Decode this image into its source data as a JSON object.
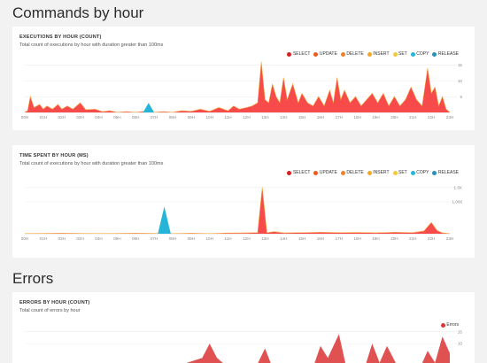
{
  "sections": {
    "commands_title": "Commands by hour",
    "errors_title": "Errors"
  },
  "legend_items": [
    {
      "label": "SELECT",
      "color": "#d81e1e"
    },
    {
      "label": "UPDATE",
      "color": "#ea5a1e"
    },
    {
      "label": "DELETE",
      "color": "#f27f2a"
    },
    {
      "label": "INSERT",
      "color": "#f5a623"
    },
    {
      "label": "SET",
      "color": "#f4c93e"
    },
    {
      "label": "COPY",
      "color": "#26b5d8"
    },
    {
      "label": "RELEASE",
      "color": "#2a8fb9"
    }
  ],
  "x_ticks": [
    "00H",
    "01H",
    "02H",
    "03H",
    "04H",
    "05H",
    "06H",
    "07H",
    "08H",
    "09H",
    "10H",
    "11H",
    "12H",
    "13H",
    "14H",
    "15H",
    "16H",
    "17H",
    "18H",
    "19H",
    "20H",
    "21H",
    "22H",
    "23H"
  ],
  "chart_data": [
    {
      "type": "area",
      "title": "EXECUTIONS BY HOUR (COUNT)",
      "subtitle": "Total count of executions by hour with duration greater than 100ms",
      "y_ticks": [
        "15",
        "10",
        "5",
        "0"
      ],
      "ylim": [
        0,
        16
      ],
      "x_range": [
        0,
        23
      ],
      "colors": {
        "main": "#f74b4b",
        "accent": "#f5a623",
        "copy": "#26b5d8"
      },
      "series": [
        {
          "name": "SELECT",
          "points": [
            [
              0,
              0
            ],
            [
              0.15,
              0.5
            ],
            [
              0.3,
              5
            ],
            [
              0.5,
              1.5
            ],
            [
              0.8,
              2.5
            ],
            [
              1.0,
              1
            ],
            [
              1.2,
              2
            ],
            [
              1.5,
              1
            ],
            [
              1.8,
              2.5
            ],
            [
              2.0,
              1
            ],
            [
              2.3,
              2
            ],
            [
              2.6,
              1
            ],
            [
              3.0,
              3
            ],
            [
              3.3,
              0.8
            ],
            [
              3.8,
              1
            ],
            [
              4.2,
              0.2
            ],
            [
              4.6,
              0.5
            ],
            [
              5.0,
              0
            ],
            [
              5.5,
              0.2
            ],
            [
              6.0,
              0
            ],
            [
              6.5,
              0.3
            ],
            [
              7.0,
              0
            ],
            [
              7.5,
              0.2
            ],
            [
              8.0,
              0
            ],
            [
              8.5,
              0.5
            ],
            [
              9.0,
              0.3
            ],
            [
              9.5,
              1
            ],
            [
              10.0,
              0.3
            ],
            [
              10.5,
              1.5
            ],
            [
              11.0,
              0.5
            ],
            [
              11.3,
              2
            ],
            [
              11.6,
              1
            ],
            [
              12.0,
              1.5
            ],
            [
              12.3,
              2
            ],
            [
              12.6,
              3
            ],
            [
              12.8,
              16
            ],
            [
              13.0,
              4
            ],
            [
              13.2,
              3
            ],
            [
              13.4,
              9
            ],
            [
              13.6,
              5
            ],
            [
              13.8,
              3
            ],
            [
              14.0,
              11
            ],
            [
              14.2,
              4
            ],
            [
              14.5,
              9
            ],
            [
              14.8,
              3
            ],
            [
              15.0,
              6
            ],
            [
              15.3,
              3
            ],
            [
              15.6,
              2
            ],
            [
              15.9,
              5
            ],
            [
              16.2,
              2
            ],
            [
              16.5,
              7
            ],
            [
              16.7,
              3
            ],
            [
              16.9,
              11
            ],
            [
              17.1,
              4
            ],
            [
              17.3,
              7
            ],
            [
              17.6,
              3
            ],
            [
              17.9,
              5
            ],
            [
              18.2,
              2
            ],
            [
              18.5,
              4
            ],
            [
              18.8,
              6
            ],
            [
              19.1,
              3
            ],
            [
              19.4,
              6
            ],
            [
              19.7,
              2
            ],
            [
              20.0,
              5
            ],
            [
              20.3,
              2
            ],
            [
              20.6,
              4
            ],
            [
              20.9,
              8
            ],
            [
              21.2,
              4
            ],
            [
              21.5,
              2
            ],
            [
              21.8,
              14
            ],
            [
              22.0,
              6
            ],
            [
              22.2,
              8
            ],
            [
              22.4,
              2
            ],
            [
              22.6,
              5
            ],
            [
              22.8,
              1
            ],
            [
              23,
              0
            ]
          ]
        },
        {
          "name": "COPY",
          "points": [
            [
              6.4,
              0
            ],
            [
              6.7,
              3
            ],
            [
              7.0,
              0
            ]
          ]
        }
      ]
    },
    {
      "type": "area",
      "title": "TIME SPENT BY HOUR (MS)",
      "subtitle": "Total count of executions by hour with duration greater than 100ms",
      "y_ticks": [
        "1.5K",
        "1,000",
        "500",
        "0"
      ],
      "ylim": [
        0,
        1500
      ],
      "x_range": [
        0,
        23
      ],
      "colors": {
        "main": "#f74b4b",
        "accent": "#f5a623",
        "copy": "#26b5d8"
      },
      "series": [
        {
          "name": "SELECT",
          "points": [
            [
              0,
              0
            ],
            [
              2,
              10
            ],
            [
              4,
              0
            ],
            [
              6,
              10
            ],
            [
              8,
              0
            ],
            [
              9,
              10
            ],
            [
              10,
              0
            ],
            [
              11,
              15
            ],
            [
              12,
              20
            ],
            [
              12.6,
              30
            ],
            [
              12.85,
              1450
            ],
            [
              13.1,
              30
            ],
            [
              13.5,
              60
            ],
            [
              14,
              20
            ],
            [
              15,
              30
            ],
            [
              16,
              40
            ],
            [
              17,
              30
            ],
            [
              18,
              35
            ],
            [
              19,
              25
            ],
            [
              20,
              40
            ],
            [
              21,
              30
            ],
            [
              21.6,
              80
            ],
            [
              22.0,
              350
            ],
            [
              22.3,
              100
            ],
            [
              22.6,
              20
            ],
            [
              23,
              0
            ]
          ]
        },
        {
          "name": "COPY",
          "points": [
            [
              7.2,
              0
            ],
            [
              7.55,
              850
            ],
            [
              7.9,
              0
            ]
          ]
        }
      ]
    },
    {
      "type": "area",
      "title": "ERRORS BY HOUR (COUNT)",
      "subtitle": "Total count of errors by hour",
      "legend": [
        {
          "label": "Errors",
          "color": "#d43b3b"
        }
      ],
      "y_ticks": [
        "15",
        "10"
      ],
      "ylim": [
        0,
        16
      ],
      "x_range": [
        0,
        23
      ],
      "colors": {
        "main": "#e05252"
      },
      "series": [
        {
          "name": "Errors",
          "points": [
            [
              0,
              0
            ],
            [
              4,
              0
            ],
            [
              8,
              0
            ],
            [
              9.6,
              4
            ],
            [
              10.0,
              10
            ],
            [
              10.4,
              4
            ],
            [
              11,
              0
            ],
            [
              12.5,
              0
            ],
            [
              13.0,
              8
            ],
            [
              13.4,
              0
            ],
            [
              15.6,
              0
            ],
            [
              16.0,
              9
            ],
            [
              16.4,
              4
            ],
            [
              17.0,
              14
            ],
            [
              17.4,
              0
            ],
            [
              18.4,
              0
            ],
            [
              18.8,
              10
            ],
            [
              19.2,
              2
            ],
            [
              19.6,
              9
            ],
            [
              20.2,
              0
            ],
            [
              21.4,
              0
            ],
            [
              21.8,
              7
            ],
            [
              22.2,
              2
            ],
            [
              22.6,
              13
            ],
            [
              23,
              6
            ]
          ]
        }
      ]
    }
  ]
}
